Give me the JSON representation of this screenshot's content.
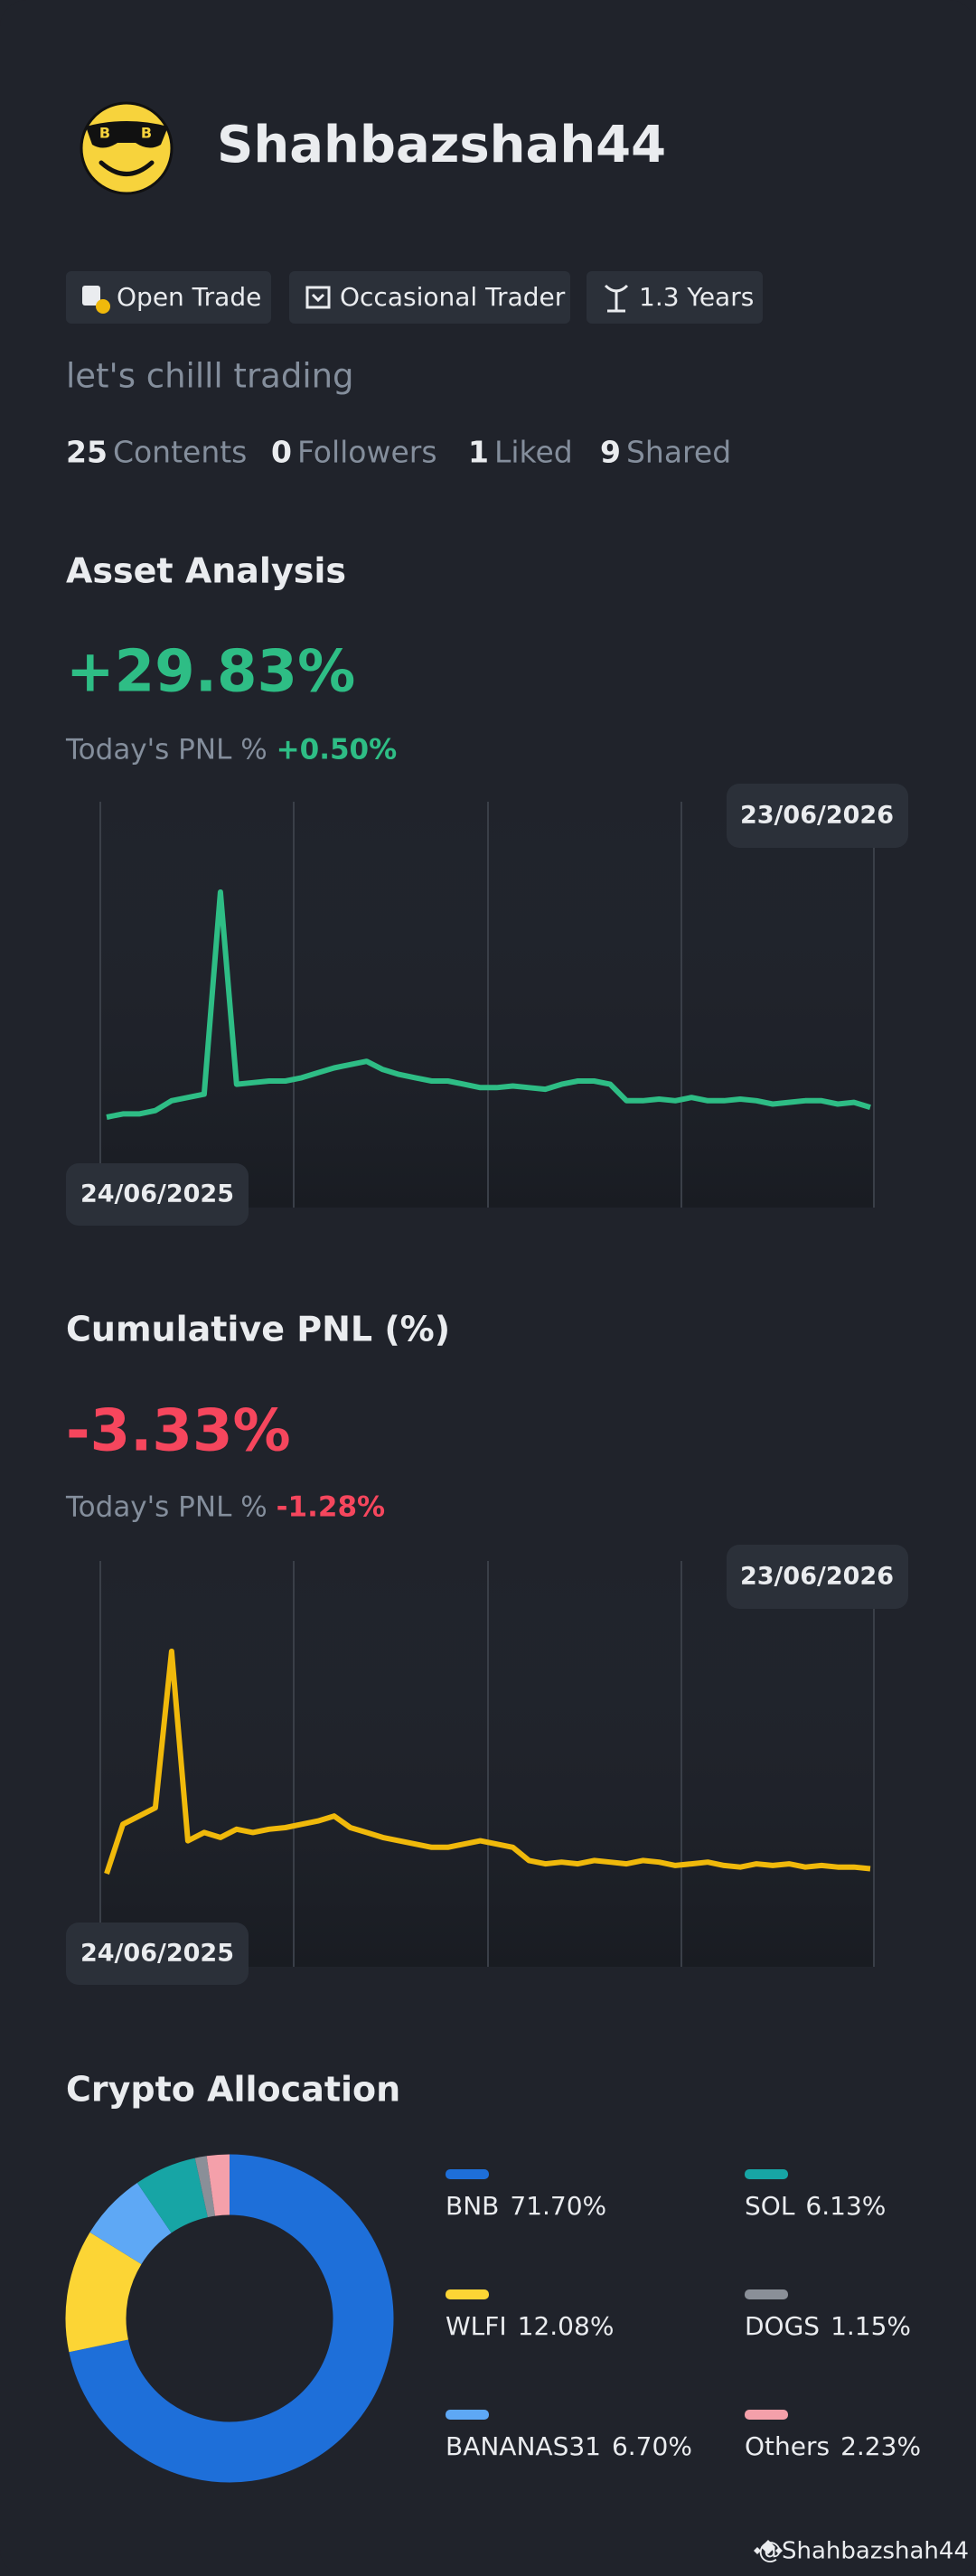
{
  "profile": {
    "username": "Shahbazshah44",
    "tags": [
      "Open Trade",
      "Occasional Trader",
      "1.3 Years"
    ],
    "bio": "let's chilll trading",
    "stats": [
      {
        "value": 25,
        "label": "Contents"
      },
      {
        "value": 0,
        "label": "Followers"
      },
      {
        "value": 1,
        "label": "Liked"
      },
      {
        "value": 9,
        "label": "Shared"
      }
    ]
  },
  "chart_data": [
    {
      "type": "line",
      "title": "Asset Analysis",
      "headline": "+29.83%",
      "today_label": "Today's PNL %",
      "today_value": "+0.50%",
      "date_range": [
        "24/06/2025",
        "23/06/2026"
      ],
      "series": [
        {
          "color": "#2ebd85",
          "values": [
            25.0,
            26.6,
            26.6,
            28.2,
            33.0,
            34.6,
            36.2,
            134.6,
            41.0,
            41.8,
            42.6,
            42.6,
            44.2,
            46.6,
            49.0,
            50.6,
            52.2,
            48.2,
            45.8,
            44.2,
            42.6,
            42.6,
            41.0,
            39.4,
            39.4,
            40.2,
            39.4,
            38.6,
            41.0,
            42.6,
            42.6,
            41.0,
            33.0,
            33.0,
            33.8,
            33.0,
            34.6,
            33.0,
            33.0,
            33.8,
            33.0,
            31.4,
            32.2,
            33.0,
            33.0,
            31.4,
            32.2,
            29.8
          ]
        }
      ]
    },
    {
      "type": "line",
      "title": "Cumulative PNL (%)",
      "headline": "-3.33%",
      "today_label": "Today's PNL %",
      "today_value": "-1.28%",
      "date_range": [
        "24/06/2025",
        "23/06/2026"
      ],
      "series": [
        {
          "color": "#f0b90b",
          "values": [
            -3.93,
            2.07,
            3.07,
            4.07,
            23.07,
            0.07,
            1.07,
            0.47,
            1.47,
            1.07,
            1.47,
            1.67,
            2.07,
            2.47,
            3.07,
            1.67,
            1.07,
            0.47,
            0.07,
            -0.33,
            -0.73,
            -0.73,
            -0.33,
            0.07,
            -0.33,
            -0.73,
            -2.33,
            -2.73,
            -2.53,
            -2.73,
            -2.33,
            -2.53,
            -2.73,
            -2.33,
            -2.53,
            -2.93,
            -2.73,
            -2.53,
            -2.93,
            -3.13,
            -2.73,
            -2.93,
            -2.73,
            -3.13,
            -2.93,
            -3.13,
            -3.13,
            -3.33
          ]
        }
      ]
    },
    {
      "type": "pie",
      "title": "Crypto Allocation",
      "categories": [
        "BNB",
        "WLFI",
        "BANANAS31",
        "SOL",
        "DOGS",
        "Others"
      ],
      "values": [
        71.7,
        12.08,
        6.7,
        6.13,
        1.15,
        2.23
      ],
      "value_labels": [
        "71.70%",
        "12.08%",
        "6.70%",
        "6.13%",
        "1.15%",
        "2.23%"
      ],
      "colors": [
        "#1e6fd9",
        "#fcd535",
        "#5ea8f5",
        "#17a5a5",
        "#8a8f98",
        "#f4a0aa"
      ]
    }
  ],
  "watermark": "@Shahbazshah44"
}
